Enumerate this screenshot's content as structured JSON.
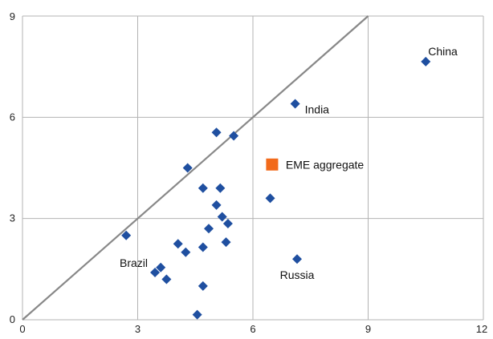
{
  "chart_data": {
    "type": "scatter",
    "title": "",
    "xlabel": "",
    "ylabel": "",
    "xlim": [
      0,
      12
    ],
    "ylim": [
      0,
      9
    ],
    "x_ticks": [
      "0",
      "3",
      "6",
      "9",
      "12"
    ],
    "y_ticks": [
      "0",
      "3",
      "6",
      "9"
    ],
    "grid": true,
    "reference_line": {
      "from": [
        0,
        0
      ],
      "to": [
        9,
        9
      ],
      "color": "#888888"
    },
    "colors": {
      "points": "#1f4fa0",
      "aggregate": "#f26a1b",
      "grid": "#b3b3b3",
      "axis": "#888888"
    },
    "points": [
      {
        "x": 10.5,
        "y": 7.65,
        "label": "China"
      },
      {
        "x": 7.1,
        "y": 6.4,
        "label": "India"
      },
      {
        "x": 7.15,
        "y": 1.8,
        "label": "Russia"
      },
      {
        "x": 3.45,
        "y": 1.4,
        "label": "Brazil"
      },
      {
        "x": 2.7,
        "y": 2.5
      },
      {
        "x": 3.6,
        "y": 1.55
      },
      {
        "x": 3.75,
        "y": 1.2
      },
      {
        "x": 4.05,
        "y": 2.25
      },
      {
        "x": 4.25,
        "y": 2.0
      },
      {
        "x": 4.3,
        "y": 4.5
      },
      {
        "x": 4.55,
        "y": 0.15
      },
      {
        "x": 4.7,
        "y": 3.9
      },
      {
        "x": 4.7,
        "y": 2.15
      },
      {
        "x": 4.7,
        "y": 1.0
      },
      {
        "x": 4.85,
        "y": 2.7
      },
      {
        "x": 5.05,
        "y": 5.55
      },
      {
        "x": 5.05,
        "y": 3.4
      },
      {
        "x": 5.15,
        "y": 3.9
      },
      {
        "x": 5.2,
        "y": 3.05
      },
      {
        "x": 5.3,
        "y": 2.3
      },
      {
        "x": 5.35,
        "y": 2.85
      },
      {
        "x": 5.5,
        "y": 5.45
      },
      {
        "x": 6.45,
        "y": 3.6
      }
    ],
    "aggregate": {
      "x": 6.5,
      "y": 4.6,
      "label": "EME aggregate"
    }
  }
}
